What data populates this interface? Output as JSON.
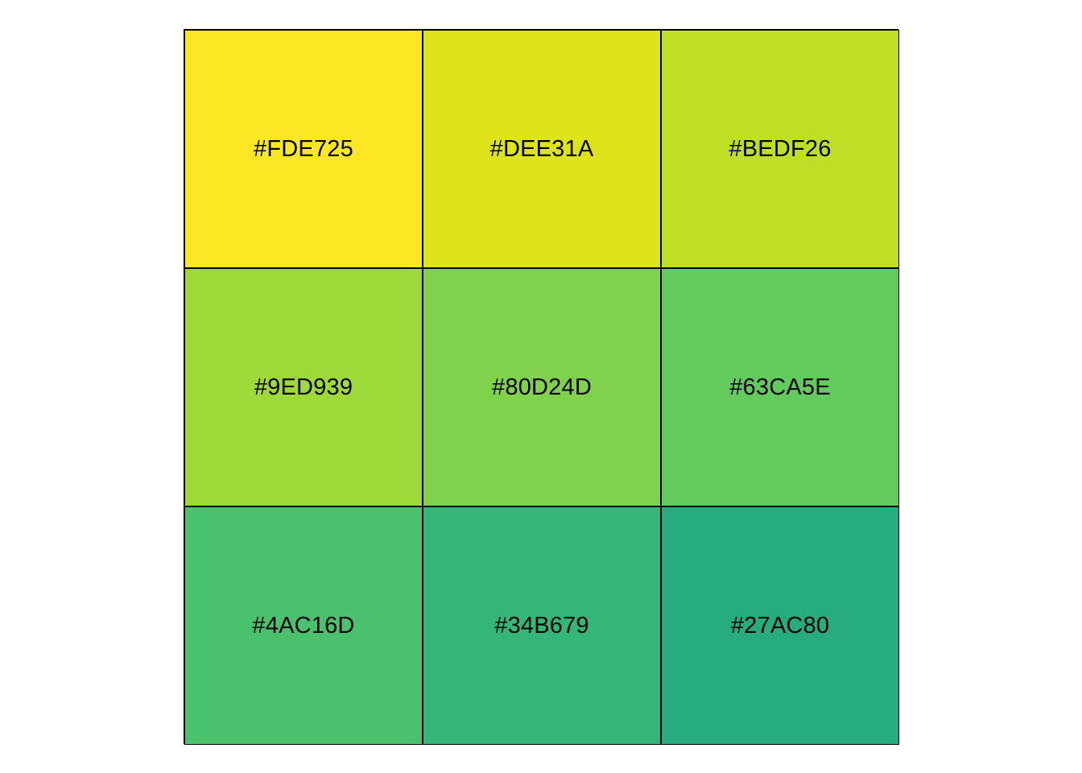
{
  "palette": {
    "swatches": [
      {
        "label": "#FDE725",
        "color": "#FDE725"
      },
      {
        "label": "#DEE31A",
        "color": "#DEE31A"
      },
      {
        "label": "#BEDF26",
        "color": "#BEDF26"
      },
      {
        "label": "#9ED939",
        "color": "#9ED939"
      },
      {
        "label": "#80D24D",
        "color": "#80D24D"
      },
      {
        "label": "#63CA5E",
        "color": "#63CA5E"
      },
      {
        "label": "#4AC16D",
        "color": "#4AC16D"
      },
      {
        "label": "#34B679",
        "color": "#34B679"
      },
      {
        "label": "#27AC80",
        "color": "#27AC80"
      }
    ]
  }
}
